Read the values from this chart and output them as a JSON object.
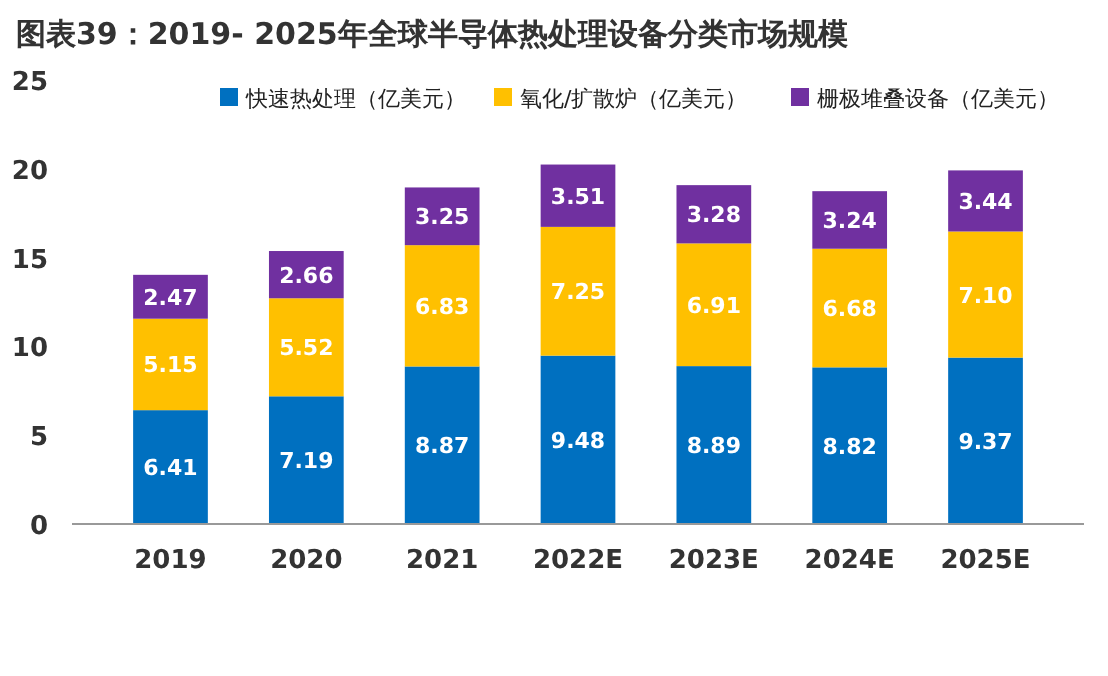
{
  "chart_data": {
    "type": "bar",
    "title": "图表39：2019- 2025年全球半导体热处理设备分类市场规模",
    "categories": [
      "2019",
      "2020",
      "2021",
      "2022E",
      "2023E",
      "2024E",
      "2025E"
    ],
    "stacked": true,
    "series": [
      {
        "name": "快速热处理（亿美元）",
        "color": "#0070c0",
        "values": [
          6.41,
          7.19,
          8.87,
          9.48,
          8.89,
          8.82,
          9.37
        ],
        "value_labels": [
          "6.41",
          "7.19",
          "8.87",
          "9.48",
          "8.89",
          "8.82",
          "9.37"
        ]
      },
      {
        "name": "氧化/扩散炉（亿美元）",
        "color": "#ffc000",
        "values": [
          5.15,
          5.52,
          6.83,
          7.25,
          6.91,
          6.68,
          7.1
        ],
        "value_labels": [
          "5.15",
          "5.52",
          "6.83",
          "7.25",
          "6.91",
          "6.68",
          "7.10"
        ]
      },
      {
        "name": "栅极堆叠设备（亿美元）",
        "color": "#7030a0",
        "values": [
          2.47,
          2.66,
          3.25,
          3.51,
          3.28,
          3.24,
          3.44
        ],
        "value_labels": [
          "2.47",
          "2.66",
          "3.25",
          "3.51",
          "3.28",
          "3.24",
          "3.44"
        ]
      }
    ],
    "ylim": [
      0,
      25
    ],
    "yticks": [
      0,
      5,
      10,
      15,
      20,
      25
    ],
    "legend": "top right",
    "grid": false
  }
}
